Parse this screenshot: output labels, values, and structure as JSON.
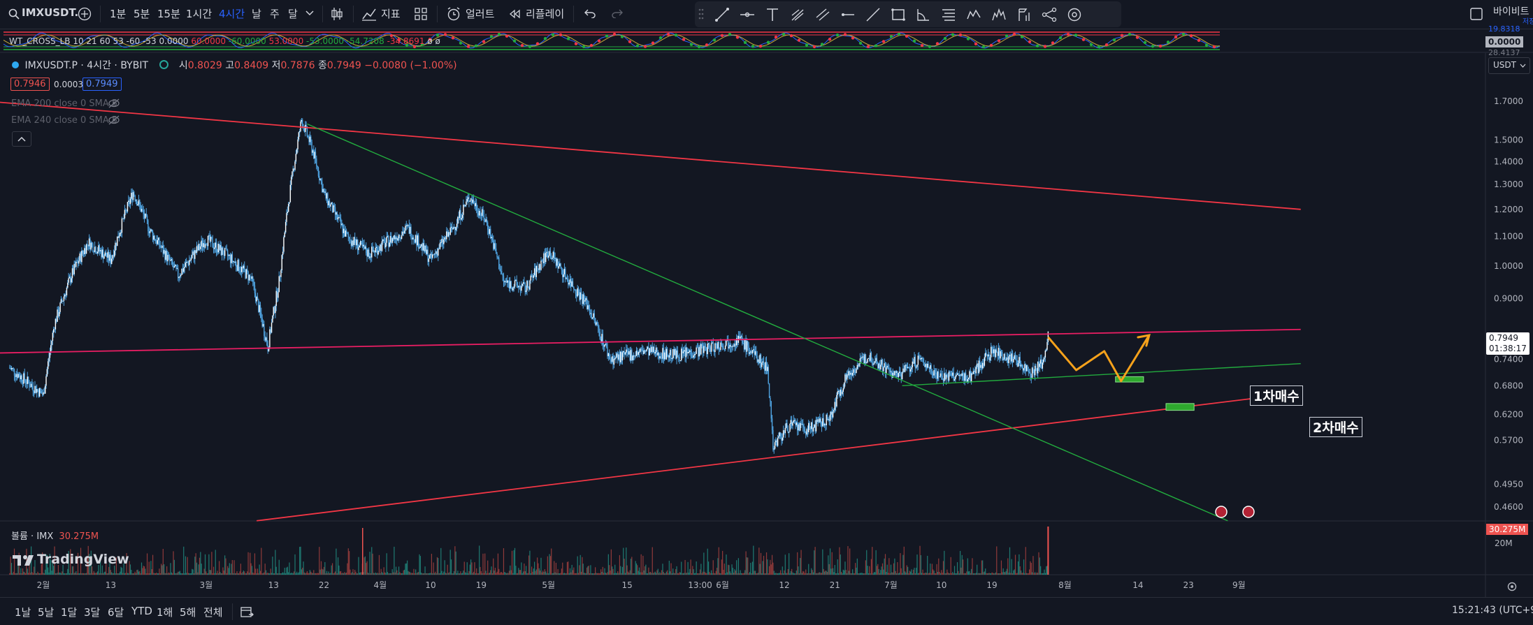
{
  "toolbar": {
    "symbol": "IMXUSDT.",
    "intervals": [
      "1분",
      "5분",
      "15분",
      "1시간",
      "4시간",
      "날",
      "주",
      "달"
    ],
    "active_interval": "4시간",
    "indicators_label": "지표",
    "alert_label": "얼러트",
    "replay_label": "리플레이",
    "exchange_label": "바이비트",
    "exchange_sub": "저장"
  },
  "indicator_pane": {
    "label": "WT_CROSS_LB 10 21 60 53 -60 -53",
    "values": [
      "0.0000",
      "60.0000",
      "-60.0000",
      "53.0000",
      "-53.0000",
      "-54.7208",
      "-34.8691"
    ],
    "tail": "ø ø",
    "scale_top": "19.8318",
    "scale_value": "0.0000",
    "scale_bottom": "28.4137"
  },
  "legend": {
    "title": "IMXUSDT.P · 4시간 · BYBIT",
    "o_label": "시",
    "o": "0.8029",
    "h_label": "고",
    "h": "0.8409",
    "l_label": "저",
    "l": "0.7876",
    "c_label": "종",
    "c": "0.7949",
    "change": "−0.0080 (−1.00%)",
    "bid": "0.7946",
    "spread": "0.0003",
    "ask": "0.7949",
    "ema1": "EMA 200 close 0 SMA 5",
    "ema2": "EMA 240 close 0 SMA 5"
  },
  "currency": "USDT",
  "last_price": "0.7949",
  "countdown": "01:38:17",
  "volume": {
    "label": "볼륨 · IMX",
    "value": "30.275M",
    "scale": "20M"
  },
  "brand": "TradingView",
  "annotations": {
    "first": "1차매수",
    "second": "2차매수"
  },
  "timeframes": [
    "1날",
    "5날",
    "1달",
    "3달",
    "6달",
    "YTD",
    "1해",
    "5해",
    "전체"
  ],
  "clock": "15:21:43 (UTC+9)",
  "colors": {
    "up": "#26a69a",
    "down": "#ef5350",
    "candle": "#4fa3e0",
    "resistance": "#e91e63",
    "trend_red": "#f23645",
    "trend_green": "#22ab3e",
    "projection": "#f7a21b",
    "zone": "#2ea82e"
  },
  "chart_data": {
    "type": "line",
    "series_name": "IMXUSDT.P",
    "y_scale": "log",
    "ylim": [
      0.44,
      1.85
    ],
    "y_ticks": [
      "1.7000",
      "1.5000",
      "1.4000",
      "1.3000",
      "1.2000",
      "1.1000",
      "1.0000",
      "0.9000",
      "0.7400",
      "0.6800",
      "0.6200",
      "0.5700",
      "0.4950",
      "0.4600"
    ],
    "x_ticks": [
      "2월",
      "13",
      "3월",
      "13",
      "22",
      "4월",
      "10",
      "19",
      "5월",
      "15",
      "13:00",
      "6월",
      "12",
      "21",
      "7월",
      "10",
      "19",
      "8월",
      "14",
      "23",
      "9월"
    ],
    "price_path": [
      [
        "01-26",
        0.72
      ],
      [
        "02-01",
        0.66
      ],
      [
        "02-03",
        0.83
      ],
      [
        "02-06",
        0.97
      ],
      [
        "02-09",
        1.08
      ],
      [
        "02-13",
        1.02
      ],
      [
        "02-17",
        1.27
      ],
      [
        "02-20",
        1.12
      ],
      [
        "02-25",
        0.97
      ],
      [
        "03-01",
        1.09
      ],
      [
        "03-05",
        1.03
      ],
      [
        "03-09",
        0.96
      ],
      [
        "03-12",
        0.77
      ],
      [
        "03-14",
        0.95
      ],
      [
        "03-16",
        1.28
      ],
      [
        "03-18",
        1.6
      ],
      [
        "03-20",
        1.45
      ],
      [
        "03-22",
        1.26
      ],
      [
        "03-26",
        1.1
      ],
      [
        "03-30",
        1.04
      ],
      [
        "04-03",
        1.09
      ],
      [
        "04-06",
        1.13
      ],
      [
        "04-10",
        1.02
      ],
      [
        "04-14",
        1.13
      ],
      [
        "04-17",
        1.25
      ],
      [
        "04-20",
        1.15
      ],
      [
        "04-23",
        0.95
      ],
      [
        "04-27",
        0.93
      ],
      [
        "05-01",
        1.05
      ],
      [
        "05-04",
        0.97
      ],
      [
        "05-08",
        0.88
      ],
      [
        "05-12",
        0.74
      ],
      [
        "05-18",
        0.76
      ],
      [
        "05-24",
        0.75
      ],
      [
        "05-30",
        0.77
      ],
      [
        "06-04",
        0.79
      ],
      [
        "06-06",
        0.76
      ],
      [
        "06-09",
        0.72
      ],
      [
        "06-10",
        0.56
      ],
      [
        "06-13",
        0.6
      ],
      [
        "06-16",
        0.59
      ],
      [
        "06-20",
        0.61
      ],
      [
        "06-23",
        0.7
      ],
      [
        "06-27",
        0.75
      ],
      [
        "07-02",
        0.7
      ],
      [
        "07-06",
        0.74
      ],
      [
        "07-10",
        0.7
      ],
      [
        "07-15",
        0.7
      ],
      [
        "07-19",
        0.76
      ],
      [
        "07-23",
        0.74
      ],
      [
        "07-26",
        0.71
      ],
      [
        "07-28",
        0.73
      ],
      [
        "07-29",
        0.795
      ]
    ],
    "trendlines": [
      {
        "from": [
          "01-22",
          0.755
        ],
        "to": [
          "09-12",
          0.815
        ],
        "color": "resistance"
      },
      {
        "from": [
          "01-22",
          1.7
        ],
        "to": [
          "09-12",
          1.2
        ],
        "color": "trend_red"
      },
      {
        "from": [
          "03-10",
          0.44
        ],
        "to": [
          "09-12",
          0.665
        ],
        "color": "trend_red"
      },
      {
        "from": [
          "03-19",
          1.58
        ],
        "to": [
          "08-30",
          0.44
        ],
        "color": "trend_green"
      },
      {
        "from": [
          "07-03",
          0.68
        ],
        "to": [
          "09-12",
          0.73
        ],
        "color": "trend_green"
      }
    ],
    "projection": [
      [
        "07-29",
        0.795
      ],
      [
        "08-03",
        0.715
      ],
      [
        "08-08",
        0.76
      ],
      [
        "08-11",
        0.69
      ],
      [
        "08-16",
        0.8
      ]
    ],
    "zones": [
      {
        "from": [
          "08-10",
          0.7
        ],
        "to": [
          "08-15",
          0.688
        ]
      },
      {
        "from": [
          "08-19",
          0.642
        ],
        "to": [
          "08-24",
          0.628
        ]
      }
    ],
    "volume": {
      "max": "30.275M",
      "spike_date": "07-29"
    }
  }
}
